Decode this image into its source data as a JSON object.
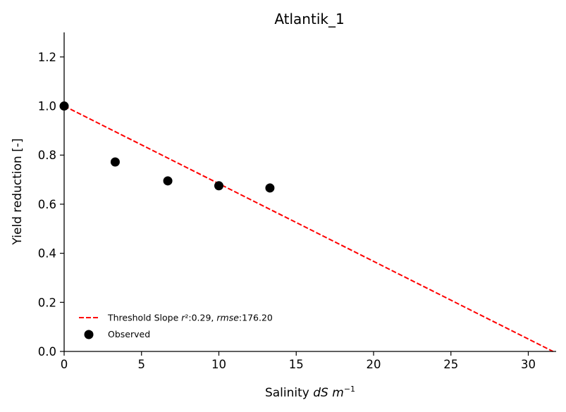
{
  "chart_data": {
    "type": "scatter",
    "title": "Atlantik_1",
    "xlabel_prefix": "Salinity ",
    "xlabel_unit_main": "dS m",
    "xlabel_unit_sup": "−1",
    "ylabel": "Yield reduction [-]",
    "xlim": [
      0,
      31.8
    ],
    "ylim": [
      0,
      1.3
    ],
    "xticks": [
      0,
      5,
      10,
      15,
      20,
      25,
      30
    ],
    "yticks": [
      0.0,
      0.2,
      0.4,
      0.6,
      0.8,
      1.0,
      1.2
    ],
    "xtick_labels": [
      "0",
      "5",
      "10",
      "15",
      "20",
      "25",
      "30"
    ],
    "ytick_labels": [
      "0.0",
      "0.2",
      "0.4",
      "0.6",
      "0.8",
      "1.0",
      "1.2"
    ],
    "grid": false,
    "legend_position": "lower-left",
    "series": [
      {
        "name": "Threshold Slope r²:0.29, rmse:176.20",
        "kind": "line",
        "style": "dashed",
        "color": "#ff0000",
        "x": [
          0,
          31.6
        ],
        "y": [
          1.0,
          0.0
        ]
      },
      {
        "name": "Observed",
        "kind": "scatter",
        "color": "#000000",
        "x": [
          0,
          3.3,
          6.7,
          10.0,
          13.3
        ],
        "y": [
          1.0,
          0.772,
          0.695,
          0.675,
          0.666
        ]
      }
    ],
    "legend": {
      "line_prefix": "Threshold Slope ",
      "line_r2_sym": "r",
      "line_r2_sup": "²",
      "line_r2_val": ":0.29, ",
      "line_rmse_sym": "rmse",
      "line_rmse_val": ":176.20",
      "scatter_label": "Observed"
    }
  }
}
